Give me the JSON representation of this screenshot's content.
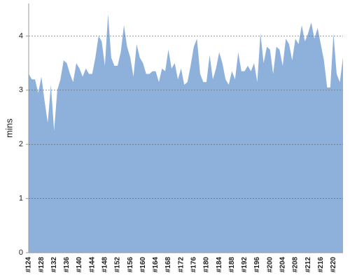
{
  "chart_data": {
    "type": "area",
    "ylabel": "mins",
    "color": "#8eb1dc",
    "grid": true,
    "ylim": [
      0,
      4.6
    ],
    "yticks": [
      0,
      1,
      2,
      3,
      4
    ],
    "categories": [
      "#124",
      null,
      null,
      null,
      "#128",
      null,
      null,
      null,
      "#132",
      null,
      null,
      null,
      "#136",
      null,
      null,
      null,
      "#140",
      null,
      null,
      null,
      "#144",
      null,
      null,
      null,
      "#148",
      null,
      null,
      null,
      "#152",
      null,
      null,
      null,
      "#156",
      null,
      null,
      null,
      "#160",
      null,
      null,
      null,
      "#164",
      null,
      null,
      null,
      "#168",
      null,
      null,
      null,
      "#172",
      null,
      null,
      null,
      "#176",
      null,
      null,
      null,
      "#180",
      null,
      null,
      null,
      "#184",
      null,
      null,
      null,
      "#188",
      null,
      null,
      null,
      "#192",
      null,
      null,
      null,
      "#196",
      null,
      null,
      null,
      "#200",
      null,
      null,
      null,
      "#204",
      null,
      null,
      null,
      "#208",
      null,
      null,
      null,
      "#212",
      null,
      null,
      null,
      "#216",
      null,
      null,
      null,
      "#220",
      null,
      null,
      null
    ],
    "values": [
      3.3,
      3.2,
      3.2,
      2.95,
      3.25,
      2.8,
      2.4,
      3.1,
      2.25,
      3.0,
      3.2,
      3.55,
      3.5,
      3.3,
      3.15,
      3.5,
      3.4,
      3.25,
      3.4,
      3.3,
      3.3,
      3.6,
      4.0,
      3.9,
      3.45,
      4.4,
      3.6,
      3.45,
      3.45,
      3.7,
      4.2,
      3.8,
      3.6,
      3.25,
      3.85,
      3.6,
      3.5,
      3.3,
      3.3,
      3.35,
      3.35,
      3.15,
      3.4,
      3.35,
      3.75,
      3.4,
      3.5,
      3.2,
      3.4,
      3.1,
      3.15,
      3.45,
      3.8,
      3.95,
      3.3,
      3.15,
      3.15,
      3.65,
      3.2,
      3.4,
      3.7,
      3.5,
      3.2,
      3.1,
      3.35,
      3.2,
      3.7,
      3.35,
      3.35,
      3.45,
      3.35,
      3.5,
      3.15,
      4.05,
      3.5,
      3.8,
      3.75,
      3.3,
      3.8,
      3.75,
      3.45,
      3.95,
      3.85,
      3.55,
      3.95,
      3.85,
      4.2,
      3.9,
      4.05,
      4.25,
      3.95,
      4.15,
      3.85,
      3.55,
      3.05,
      3.05,
      4.05,
      3.3,
      3.15,
      3.6
    ]
  }
}
